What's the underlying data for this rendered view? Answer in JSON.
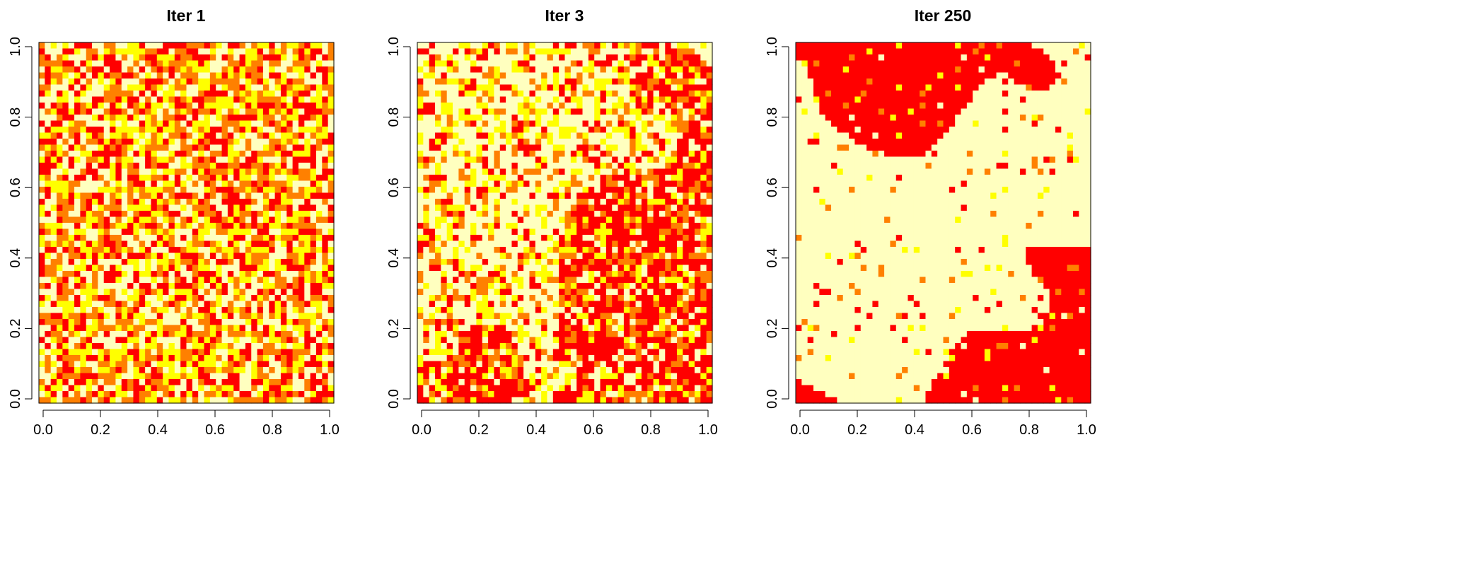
{
  "chart_data": [
    {
      "type": "heatmap",
      "title": "Iter 1",
      "xlim": [
        0,
        1
      ],
      "ylim": [
        0,
        1
      ],
      "x_ticks": [
        "0.0",
        "0.2",
        "0.4",
        "0.6",
        "0.8",
        "1.0"
      ],
      "y_ticks": [
        "0.0",
        "0.2",
        "0.4",
        "0.6",
        "0.8",
        "1.0"
      ],
      "grid": false,
      "grid_size": [
        50,
        60
      ],
      "color_levels": [
        "#ff0000",
        "#ff8000",
        "#ffff00",
        "#ffffbf"
      ],
      "state": "random speckle of red, orange, yellow and pale cream cells"
    },
    {
      "type": "heatmap",
      "title": "Iter 3",
      "xlim": [
        0,
        1
      ],
      "ylim": [
        0,
        1
      ],
      "x_ticks": [
        "0.0",
        "0.2",
        "0.4",
        "0.6",
        "0.8",
        "1.0"
      ],
      "y_ticks": [
        "0.0",
        "0.2",
        "0.4",
        "0.6",
        "0.8",
        "1.0"
      ],
      "grid": false,
      "grid_size": [
        50,
        60
      ],
      "color_levels": [
        "#ff0000",
        "#ff8000",
        "#ffff00",
        "#ffffbf"
      ],
      "state": "clustering into red and pale cream regions with scattered orange/yellow cells"
    },
    {
      "type": "heatmap",
      "title": "Iter 250",
      "xlim": [
        0,
        1
      ],
      "ylim": [
        0,
        1
      ],
      "x_ticks": [
        "0.0",
        "0.2",
        "0.4",
        "0.6",
        "0.8",
        "1.0"
      ],
      "y_ticks": [
        "0.0",
        "0.2",
        "0.4",
        "0.6",
        "0.8",
        "1.0"
      ],
      "grid": false,
      "grid_size": [
        50,
        60
      ],
      "color_levels": [
        "#ff0000",
        "#ff8000",
        "#ffff00",
        "#ffffbf"
      ],
      "state": "nearly binary large red and pale cream regions"
    }
  ]
}
